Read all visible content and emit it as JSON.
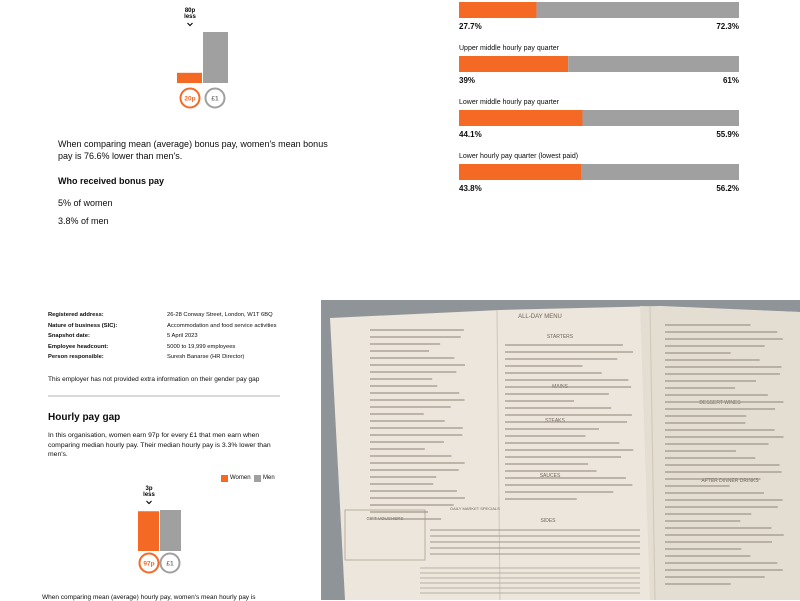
{
  "bonus": {
    "difference": "80p",
    "less": "less",
    "women_label": "20p",
    "men_label": "£1",
    "women": 20,
    "men": 100,
    "summary": "When comparing mean (average) bonus pay, women's mean bonus pay is 76.6% lower than men's.",
    "who_heading": "Who received bonus pay",
    "women_received": "5% of women",
    "men_received": "3.8% of men"
  },
  "quartiles": [
    {
      "name": null,
      "women": 27.7,
      "men": 72.3,
      "women_label": "27.7%",
      "men_label": "72.3%"
    },
    {
      "name": "Upper middle hourly pay quarter",
      "women": 39,
      "men": 61,
      "women_label": "39%",
      "men_label": "61%"
    },
    {
      "name": "Lower middle hourly pay quarter",
      "women": 44.1,
      "men": 55.9,
      "women_label": "44.1%",
      "men_label": "55.9%"
    },
    {
      "name": "Lower hourly pay quarter (lowest paid)",
      "women": 43.8,
      "men": 56.2,
      "women_label": "43.8%",
      "men_label": "56.2%"
    }
  ],
  "details": [
    [
      "Registered address:",
      "26-28 Conway Street, London, W1T 6BQ"
    ],
    [
      "Nature of business (SIC):",
      "Accommodation and food service activities"
    ],
    [
      "Snapshot date:",
      "5 April 2023"
    ],
    [
      "Employee headcount:",
      "5000 to 19,999 employees"
    ],
    [
      "Person responsible:",
      "Suresh Banarse (HR Director)"
    ]
  ],
  "no_info": "This employer has not provided extra information on their gender pay gap",
  "hourly": {
    "heading": "Hourly pay gap",
    "text": "In this organisation, women earn 97p for every £1 that men earn when comparing median hourly pay. Their median hourly pay is 3.3% lower than men's.",
    "legend_women": "Women",
    "legend_men": "Men",
    "difference": "3p",
    "less": "less",
    "women_label": "97p",
    "men_label": "£1",
    "women": 97,
    "men": 100,
    "cut_text": "When comparing mean (average) hourly pay, women's mean hourly pay is"
  },
  "menu": {
    "title": "ALL-DAY MENU",
    "starters": "STARTERS",
    "mains": "MAINS",
    "steaks": "STEAKS",
    "sauces": "SAUCES",
    "sides": "SIDES",
    "dessert_wines": "DESSERT WINES",
    "after_dinner": "AFTER DINNER DRINKS",
    "vouchers": "GIFT VOUCHERS",
    "specials": "DAILY MARKET SPECIALS"
  }
}
